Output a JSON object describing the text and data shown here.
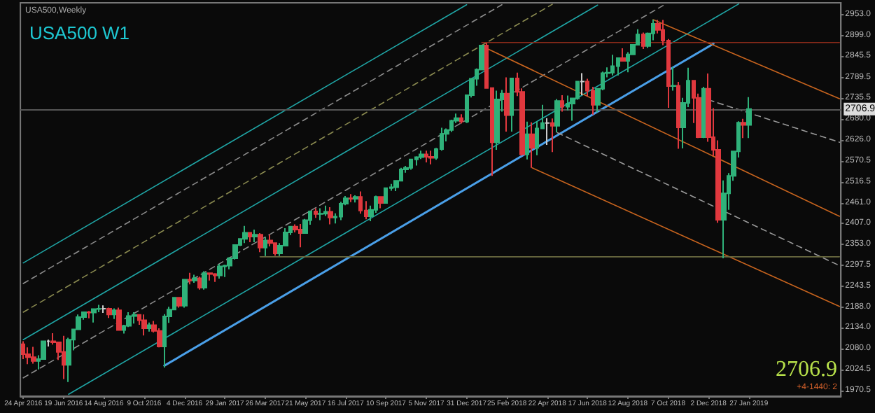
{
  "chart_data": {
    "type": "candlestick",
    "title": "USA500 W1",
    "annotations": [
      "USA500,Weekly",
      "2706.9",
      "+4-1440: 2"
    ],
    "x": [
      "2016-04-24",
      "2016-05-01",
      "2016-05-08",
      "2016-05-15",
      "2016-05-22",
      "2016-05-29",
      "2016-06-05",
      "2016-06-12",
      "2016-06-19",
      "2016-06-26",
      "2016-07-03",
      "2016-07-10",
      "2016-07-17",
      "2016-07-24",
      "2016-07-31",
      "2016-08-07",
      "2016-08-14",
      "2016-08-21",
      "2016-08-28",
      "2016-09-04",
      "2016-09-11",
      "2016-09-18",
      "2016-09-25",
      "2016-10-02",
      "2016-10-09",
      "2016-10-16",
      "2016-10-23",
      "2016-10-30",
      "2016-11-06",
      "2016-11-13",
      "2016-11-20",
      "2016-11-27",
      "2016-12-04",
      "2016-12-11",
      "2016-12-18",
      "2016-12-25",
      "2017-01-01",
      "2017-01-08",
      "2017-01-15",
      "2017-01-22",
      "2017-01-29",
      "2017-02-05",
      "2017-02-12",
      "2017-02-19",
      "2017-02-26",
      "2017-03-05",
      "2017-03-12",
      "2017-03-19",
      "2017-03-26",
      "2017-04-02",
      "2017-04-09",
      "2017-04-16",
      "2017-04-23",
      "2017-04-30",
      "2017-05-07",
      "2017-05-14",
      "2017-05-21",
      "2017-05-28",
      "2017-06-04",
      "2017-06-11",
      "2017-06-18",
      "2017-06-25",
      "2017-07-02",
      "2017-07-09",
      "2017-07-16",
      "2017-07-23",
      "2017-07-30",
      "2017-08-06",
      "2017-08-13",
      "2017-08-20",
      "2017-08-27",
      "2017-09-03",
      "2017-09-10",
      "2017-09-17",
      "2017-09-24",
      "2017-10-01",
      "2017-10-08",
      "2017-10-15",
      "2017-10-22",
      "2017-10-29",
      "2017-11-05",
      "2017-11-12",
      "2017-11-19",
      "2017-11-26",
      "2017-12-03",
      "2017-12-10",
      "2017-12-17",
      "2017-12-24",
      "2017-12-31",
      "2018-01-07",
      "2018-01-14",
      "2018-01-21",
      "2018-01-28",
      "2018-02-04",
      "2018-02-11",
      "2018-02-18",
      "2018-02-25",
      "2018-03-04",
      "2018-03-11",
      "2018-03-18",
      "2018-03-25",
      "2018-04-01",
      "2018-04-08",
      "2018-04-15",
      "2018-04-22",
      "2018-04-29",
      "2018-05-06",
      "2018-05-13",
      "2018-05-20",
      "2018-05-27",
      "2018-06-03",
      "2018-06-10",
      "2018-06-17",
      "2018-06-24",
      "2018-07-01",
      "2018-07-08",
      "2018-07-15",
      "2018-07-22",
      "2018-07-29",
      "2018-08-05",
      "2018-08-12",
      "2018-08-19",
      "2018-08-26",
      "2018-09-02",
      "2018-09-09",
      "2018-09-16",
      "2018-09-23",
      "2018-09-30",
      "2018-10-07",
      "2018-10-14",
      "2018-10-21",
      "2018-10-28",
      "2018-11-04",
      "2018-11-11",
      "2018-11-18",
      "2018-11-25",
      "2018-12-02",
      "2018-12-09",
      "2018-12-16",
      "2018-12-23",
      "2018-12-30",
      "2019-01-06",
      "2019-01-13",
      "2019-01-20",
      "2019-01-27"
    ],
    "ohlc": [
      [
        2091,
        2099,
        2052,
        2065
      ],
      [
        2065,
        2083,
        2039,
        2057
      ],
      [
        2057,
        2084,
        2040,
        2047
      ],
      [
        2047,
        2062,
        2025,
        2052
      ],
      [
        2052,
        2100,
        2051,
        2099
      ],
      [
        2099,
        2103,
        2085,
        2099
      ],
      [
        2099,
        2120,
        2090,
        2096
      ],
      [
        2096,
        2097,
        2050,
        2071
      ],
      [
        2071,
        2113,
        2000,
        2037
      ],
      [
        2037,
        2108,
        1992,
        2103
      ],
      [
        2103,
        2132,
        2075,
        2130
      ],
      [
        2130,
        2169,
        2128,
        2162
      ],
      [
        2162,
        2176,
        2155,
        2175
      ],
      [
        2175,
        2178,
        2159,
        2174
      ],
      [
        2174,
        2183,
        2148,
        2183
      ],
      [
        2183,
        2194,
        2175,
        2184
      ],
      [
        2184,
        2193,
        2173,
        2184
      ],
      [
        2184,
        2187,
        2160,
        2169
      ],
      [
        2169,
        2185,
        2157,
        2180
      ],
      [
        2180,
        2187,
        2127,
        2128
      ],
      [
        2128,
        2142,
        2119,
        2139
      ],
      [
        2139,
        2175,
        2136,
        2165
      ],
      [
        2165,
        2175,
        2145,
        2168
      ],
      [
        2168,
        2170,
        2142,
        2154
      ],
      [
        2154,
        2169,
        2114,
        2133
      ],
      [
        2133,
        2148,
        2124,
        2141
      ],
      [
        2141,
        2152,
        2122,
        2126
      ],
      [
        2126,
        2133,
        2083,
        2085
      ],
      [
        2085,
        2170,
        2030,
        2164
      ],
      [
        2164,
        2189,
        2147,
        2182
      ],
      [
        2182,
        2214,
        2180,
        2213
      ],
      [
        2213,
        2214,
        2187,
        2192
      ],
      [
        2192,
        2260,
        2187,
        2260
      ],
      [
        2260,
        2278,
        2248,
        2258
      ],
      [
        2258,
        2273,
        2252,
        2264
      ],
      [
        2264,
        2268,
        2234,
        2239
      ],
      [
        2239,
        2282,
        2234,
        2277
      ],
      [
        2277,
        2279,
        2258,
        2275
      ],
      [
        2275,
        2277,
        2254,
        2271
      ],
      [
        2271,
        2301,
        2263,
        2295
      ],
      [
        2295,
        2299,
        2267,
        2297
      ],
      [
        2297,
        2319,
        2287,
        2316
      ],
      [
        2316,
        2352,
        2313,
        2351
      ],
      [
        2351,
        2368,
        2348,
        2367
      ],
      [
        2367,
        2401,
        2356,
        2383
      ],
      [
        2383,
        2385,
        2358,
        2373
      ],
      [
        2373,
        2391,
        2358,
        2378
      ],
      [
        2378,
        2382,
        2332,
        2344
      ],
      [
        2344,
        2371,
        2322,
        2363
      ],
      [
        2363,
        2378,
        2347,
        2356
      ],
      [
        2356,
        2357,
        2323,
        2329
      ],
      [
        2329,
        2356,
        2322,
        2349
      ],
      [
        2349,
        2395,
        2349,
        2384
      ],
      [
        2384,
        2400,
        2377,
        2399
      ],
      [
        2399,
        2405,
        2384,
        2391
      ],
      [
        2391,
        2406,
        2345,
        2382
      ],
      [
        2382,
        2419,
        2380,
        2416
      ],
      [
        2416,
        2441,
        2404,
        2439
      ],
      [
        2439,
        2447,
        2422,
        2432
      ],
      [
        2432,
        2447,
        2416,
        2433
      ],
      [
        2433,
        2454,
        2427,
        2438
      ],
      [
        2438,
        2450,
        2405,
        2423
      ],
      [
        2423,
        2434,
        2407,
        2425
      ],
      [
        2425,
        2464,
        2416,
        2459
      ],
      [
        2459,
        2479,
        2455,
        2473
      ],
      [
        2473,
        2484,
        2463,
        2472
      ],
      [
        2472,
        2481,
        2462,
        2477
      ],
      [
        2477,
        2491,
        2433,
        2441
      ],
      [
        2441,
        2466,
        2418,
        2426
      ],
      [
        2426,
        2454,
        2413,
        2443
      ],
      [
        2443,
        2480,
        2435,
        2477
      ],
      [
        2477,
        2478,
        2447,
        2461
      ],
      [
        2461,
        2501,
        2459,
        2500
      ],
      [
        2500,
        2511,
        2493,
        2502
      ],
      [
        2502,
        2521,
        2492,
        2519
      ],
      [
        2519,
        2553,
        2519,
        2549
      ],
      [
        2549,
        2558,
        2540,
        2553
      ],
      [
        2553,
        2576,
        2548,
        2575
      ],
      [
        2575,
        2583,
        2559,
        2581
      ],
      [
        2581,
        2598,
        2576,
        2588
      ],
      [
        2588,
        2598,
        2567,
        2582
      ],
      [
        2582,
        2598,
        2562,
        2579
      ],
      [
        2579,
        2605,
        2574,
        2602
      ],
      [
        2602,
        2658,
        2598,
        2642
      ],
      [
        2642,
        2656,
        2622,
        2652
      ],
      [
        2652,
        2679,
        2647,
        2676
      ],
      [
        2676,
        2695,
        2670,
        2683
      ],
      [
        2683,
        2693,
        2669,
        2674
      ],
      [
        2674,
        2745,
        2670,
        2743
      ],
      [
        2743,
        2788,
        2737,
        2786
      ],
      [
        2786,
        2813,
        2768,
        2810
      ],
      [
        2810,
        2873,
        2808,
        2873
      ],
      [
        2873,
        2880,
        2760,
        2762
      ],
      [
        2762,
        2763,
        2532,
        2620
      ],
      [
        2620,
        2755,
        2600,
        2732
      ],
      [
        2732,
        2757,
        2700,
        2747
      ],
      [
        2747,
        2790,
        2648,
        2691
      ],
      [
        2691,
        2787,
        2648,
        2787
      ],
      [
        2787,
        2802,
        2741,
        2752
      ],
      [
        2752,
        2761,
        2585,
        2588
      ],
      [
        2588,
        2674,
        2575,
        2641
      ],
      [
        2641,
        2672,
        2553,
        2605
      ],
      [
        2605,
        2675,
        2586,
        2656
      ],
      [
        2656,
        2718,
        2654,
        2670
      ],
      [
        2670,
        2683,
        2613,
        2670
      ],
      [
        2670,
        2682,
        2594,
        2663
      ],
      [
        2663,
        2733,
        2646,
        2728
      ],
      [
        2728,
        2743,
        2700,
        2713
      ],
      [
        2713,
        2742,
        2703,
        2721
      ],
      [
        2721,
        2736,
        2676,
        2735
      ],
      [
        2735,
        2780,
        2731,
        2779
      ],
      [
        2779,
        2801,
        2743,
        2779
      ],
      [
        2779,
        2786,
        2740,
        2755
      ],
      [
        2755,
        2765,
        2692,
        2718
      ],
      [
        2718,
        2761,
        2698,
        2760
      ],
      [
        2760,
        2805,
        2756,
        2801
      ],
      [
        2801,
        2816,
        2790,
        2802
      ],
      [
        2802,
        2849,
        2795,
        2819
      ],
      [
        2819,
        2842,
        2795,
        2840
      ],
      [
        2840,
        2866,
        2832,
        2833
      ],
      [
        2833,
        2856,
        2803,
        2850
      ],
      [
        2850,
        2877,
        2848,
        2875
      ],
      [
        2875,
        2916,
        2873,
        2902
      ],
      [
        2902,
        2907,
        2864,
        2872
      ],
      [
        2872,
        2907,
        2867,
        2905
      ],
      [
        2905,
        2941,
        2887,
        2930
      ],
      [
        2930,
        2940,
        2905,
        2914
      ],
      [
        2914,
        2940,
        2874,
        2886
      ],
      [
        2886,
        2890,
        2710,
        2767
      ],
      [
        2767,
        2817,
        2755,
        2768
      ],
      [
        2768,
        2778,
        2603,
        2659
      ],
      [
        2659,
        2736,
        2604,
        2723
      ],
      [
        2723,
        2815,
        2712,
        2781
      ],
      [
        2781,
        2782,
        2670,
        2736
      ],
      [
        2736,
        2747,
        2631,
        2633
      ],
      [
        2633,
        2765,
        2631,
        2760
      ],
      [
        2760,
        2800,
        2621,
        2633
      ],
      [
        2633,
        2709,
        2584,
        2600
      ],
      [
        2600,
        2625,
        2409,
        2417
      ],
      [
        2417,
        2520,
        2316,
        2486
      ],
      [
        2486,
        2539,
        2443,
        2532
      ],
      [
        2532,
        2598,
        2519,
        2596
      ],
      [
        2596,
        2675,
        2580,
        2671
      ],
      [
        2671,
        2681,
        2631,
        2665
      ],
      [
        2665,
        2738,
        2631,
        2706.9
      ]
    ],
    "series": [
      {
        "type": "line",
        "color": "#4a9fe8",
        "x": [
          "2016-11-06",
          "2018-12-09"
        ],
        "values": [
          2035,
          2878
        ],
        "line_style": "solid"
      },
      {
        "type": "line",
        "color": "#1fa5a5",
        "x": [
          "2016-04-24",
          "2017-12-31"
        ],
        "values": [
          2304,
          2980
        ],
        "line_style": "solid"
      },
      {
        "type": "line",
        "color": "#1fa5a5",
        "x": [
          "2016-04-24",
          "2018-07-01"
        ],
        "values": [
          2103,
          2979
        ],
        "line_style": "solid"
      },
      {
        "type": "line",
        "color": "#1fa5a5",
        "x": [
          "2016-06-26",
          "2019-01-13"
        ],
        "values": [
          1960,
          2982
        ],
        "line_style": "solid"
      },
      {
        "type": "line",
        "color": "#8c8c8c",
        "x": [
          "2016-04-24",
          "2018-02-18"
        ],
        "values": [
          2250,
          2980
        ],
        "line_style": "dashed"
      },
      {
        "type": "line",
        "color": "#8a8a50",
        "x": [
          "2016-04-24",
          "2018-04-29"
        ],
        "values": [
          2175,
          2981
        ],
        "line_style": "dashed"
      },
      {
        "type": "line",
        "color": "#8c8c8c",
        "x": [
          "2016-04-24",
          "2018-09-30"
        ],
        "values": [
          2003,
          2978
        ],
        "line_style": "dashed"
      },
      {
        "type": "line",
        "color": "#c8641e",
        "x": [
          "2018-09-16",
          "2019-06-02"
        ],
        "values": [
          2941,
          2734
        ],
        "line_style": "solid"
      },
      {
        "type": "line",
        "color": "#c8641e",
        "x": [
          "2018-01-21",
          "2019-06-02"
        ],
        "values": [
          2872,
          2426
        ],
        "line_style": "solid"
      },
      {
        "type": "line",
        "color": "#c8641e",
        "x": [
          "2018-04-01",
          "2019-06-02"
        ],
        "values": [
          2553,
          2190
        ],
        "line_style": "solid"
      },
      {
        "type": "line",
        "color": "#9a9a9a",
        "x": [
          "2018-05-06",
          "2019-06-02"
        ],
        "values": [
          2645,
          2297
        ],
        "line_style": "dashed"
      },
      {
        "type": "line",
        "color": "#9a9a9a",
        "x": [
          "2018-12-02",
          "2019-06-02"
        ],
        "values": [
          2731,
          2620
        ],
        "line_style": "dashed"
      },
      {
        "type": "line",
        "color": "#8b2a1a",
        "x": [
          "2018-01-21",
          "2019-06-02"
        ],
        "values": [
          2881,
          2881
        ],
        "line_style": "solid"
      },
      {
        "type": "line",
        "color": "#6b6b40",
        "x": [
          "2017-03-19",
          "2019-06-02"
        ],
        "values": [
          2320,
          2320
        ],
        "line_style": "solid"
      }
    ],
    "ref_lines": [
      {
        "axis": "y",
        "value": 2706.9,
        "label": "2706.9",
        "color": "#555555"
      }
    ],
    "xlim": [
      "2016-04-20",
      "2019-06-04"
    ],
    "xticks": [
      {
        "value": "2016-04-24",
        "label": "24 Apr 2016"
      },
      {
        "value": "2016-06-19",
        "label": "19 Jun 2016"
      },
      {
        "value": "2016-08-14",
        "label": "14 Aug 2016"
      },
      {
        "value": "2016-10-09",
        "label": "9 Oct 2016"
      },
      {
        "value": "2016-12-04",
        "label": "4 Dec 2016"
      },
      {
        "value": "2017-01-29",
        "label": "29 Jan 2017"
      },
      {
        "value": "2017-03-26",
        "label": "26 Mar 2017"
      },
      {
        "value": "2017-05-21",
        "label": "21 May 2017"
      },
      {
        "value": "2017-07-16",
        "label": "16 Jul 2017"
      },
      {
        "value": "2017-09-10",
        "label": "10 Sep 2017"
      },
      {
        "value": "2017-11-05",
        "label": "5 Nov 2017"
      },
      {
        "value": "2017-12-31",
        "label": "31 Dec 2017"
      },
      {
        "value": "2018-02-25",
        "label": "25 Feb 2018"
      },
      {
        "value": "2018-04-22",
        "label": "22 Apr 2018"
      },
      {
        "value": "2018-06-17",
        "label": "17 Jun 2018"
      },
      {
        "value": "2018-08-12",
        "label": "12 Aug 2018"
      },
      {
        "value": "2018-10-07",
        "label": "7 Oct 2018"
      },
      {
        "value": "2018-12-02",
        "label": "2 Dec 2018"
      },
      {
        "value": "2019-01-27",
        "label": "27 Jan 2019"
      }
    ],
    "ylim": [
      1955,
      2985
    ],
    "yticks": [
      {
        "value": 2953,
        "label": "2953.0"
      },
      {
        "value": 2899,
        "label": "2899.0"
      },
      {
        "value": 2845.5,
        "label": "2845.5"
      },
      {
        "value": 2789.5,
        "label": "2789.5"
      },
      {
        "value": 2735.5,
        "label": "2735.5"
      },
      {
        "value": 2680,
        "label": "2680.0"
      },
      {
        "value": 2626,
        "label": "2626.0"
      },
      {
        "value": 2570.5,
        "label": "2570.5"
      },
      {
        "value": 2516.5,
        "label": "2516.5"
      },
      {
        "value": 2461,
        "label": "2461.0"
      },
      {
        "value": 2407,
        "label": "2407.0"
      },
      {
        "value": 2353,
        "label": "2353.0"
      },
      {
        "value": 2297.5,
        "label": "2297.5"
      },
      {
        "value": 2243.5,
        "label": "2243.5"
      },
      {
        "value": 2188,
        "label": "2188.0"
      },
      {
        "value": 2134,
        "label": "2134.0"
      },
      {
        "value": 2080,
        "label": "2080.0"
      },
      {
        "value": 2024.5,
        "label": "2024.5"
      },
      {
        "value": 1970.5,
        "label": "1970.5"
      }
    ],
    "grid": false,
    "marker": "none"
  }
}
